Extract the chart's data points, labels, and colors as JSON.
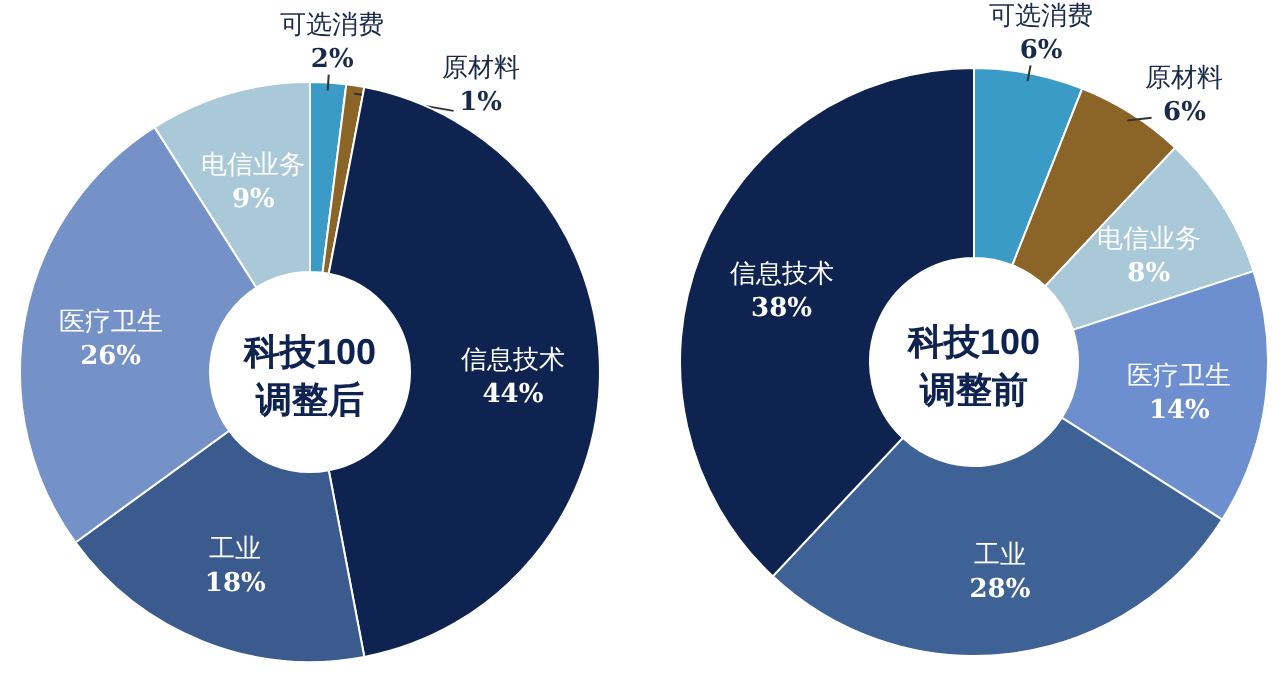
{
  "chart_data": [
    {
      "type": "donut",
      "title": "科技100",
      "subtitle": "调整后",
      "categories": [
        "可选消费",
        "原材料",
        "信息技术",
        "工业",
        "医疗卫生",
        "电信业务"
      ],
      "values": [
        2,
        1,
        44,
        18,
        26,
        9
      ],
      "value_labels": [
        "2%",
        "1%",
        "44%",
        "18%",
        "26%",
        "9%"
      ],
      "colors": [
        "#3a9cc6",
        "#8b6428",
        "#0f2350",
        "#3b5a8e",
        "#7592c8",
        "#a9c8d8"
      ]
    },
    {
      "type": "donut",
      "title": "科技100",
      "subtitle": "调整前",
      "categories": [
        "可选消费",
        "原材料",
        "电信业务",
        "医疗卫生",
        "工业",
        "信息技术"
      ],
      "values": [
        6,
        6,
        8,
        14,
        28,
        38
      ],
      "value_labels": [
        "6%",
        "6%",
        "8%",
        "14%",
        "28%",
        "38%"
      ],
      "colors": [
        "#3a9cc6",
        "#8b6428",
        "#a9c8d8",
        "#6e8fcf",
        "#3f6296",
        "#0f2350"
      ]
    }
  ]
}
